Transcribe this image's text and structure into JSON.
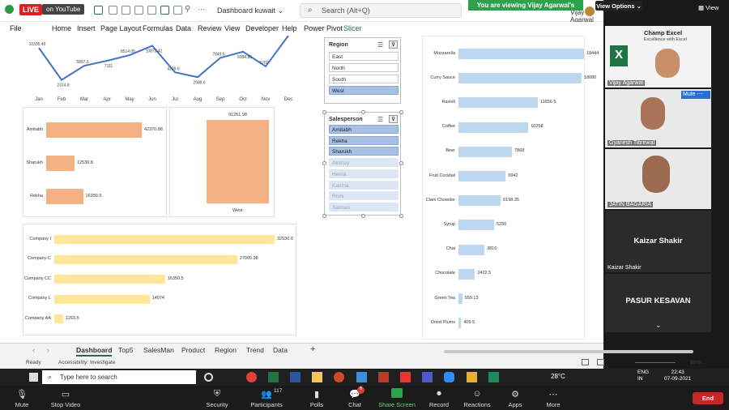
{
  "qat": {
    "live": "LIVE",
    "youtube": "on YouTube",
    "file_name": "Dashboard kuwait",
    "search_placeholder": "Search (Alt+Q)",
    "user": "Vijay Agarwal"
  },
  "zoom_banner": {
    "text": "You are viewing Vijay Agarwal's screen",
    "view_options": "View Options",
    "view": "View"
  },
  "menu": [
    "File",
    "Home",
    "Insert",
    "Page Layout",
    "Formulas",
    "Data",
    "Review",
    "View",
    "Developer",
    "Help",
    "Power Pivot",
    "Slicer"
  ],
  "line_chart": {
    "categories": [
      "Jan",
      "Feb",
      "Mar",
      "Apr",
      "May",
      "Jun",
      "Jul",
      "Aug",
      "Sep",
      "Oct",
      "Nov",
      "Dec"
    ],
    "values": [
      10335.45,
      2314.8,
      5857.5,
      7111,
      8514.05,
      10873.42,
      4209.6,
      2988.6,
      7849.6,
      9384.85,
      5702,
      15000
    ],
    "labels": [
      "10335.45",
      "2314.8",
      "5857.5",
      "7111",
      "8514.05",
      "10873.42",
      "4209.6",
      "2988.6",
      "7849.6",
      "9384.85",
      "5702",
      ""
    ],
    "ylim": [
      0,
      13000
    ]
  },
  "salesperson_chart": {
    "categories": [
      "Amitabh",
      "Sharukh",
      "Rekha"
    ],
    "values": [
      42370.88,
      12530.8,
      16350.5
    ],
    "labels": [
      "42370.88",
      "12530.8",
      "16350.5"
    ]
  },
  "region_chart": {
    "categories": [
      "West"
    ],
    "values": [
      91251.98
    ],
    "labels": [
      "91251.98"
    ]
  },
  "company_chart": {
    "categories": [
      "Company I",
      "Company C",
      "Company CC",
      "Company L",
      "Company AA"
    ],
    "values": [
      32530.6,
      27005.38,
      16350.5,
      14074,
      1293.5
    ],
    "labels": [
      "32530.6",
      "27005.38",
      "16350.5",
      "14074",
      "1293.5"
    ]
  },
  "product_chart": {
    "categories": [
      "Mozzarella",
      "Curry Sauce",
      "Ravioli",
      "Coffee",
      "Beer",
      "Fruit Cocktail",
      "Clam Chowder",
      "Syrup",
      "Chai",
      "Chocolate",
      "Green Tea",
      "Dried Plums"
    ],
    "values": [
      18444,
      18080,
      11656.5,
      10258,
      7868,
      6942,
      6198.35,
      5230,
      3816,
      2422.5,
      559.13,
      409.5
    ],
    "labels": [
      "18444",
      "18080",
      "11656.5",
      "10258",
      "7868",
      "6942",
      "6198.35",
      "5230",
      "3816",
      "2422.5",
      "559.13",
      "409.5"
    ]
  },
  "region_slicer": {
    "title": "Region",
    "items": [
      "East",
      "North",
      "South",
      "West"
    ],
    "selected": [
      false,
      false,
      false,
      true
    ]
  },
  "salesperson_slicer": {
    "title": "Salesperson",
    "items": [
      "Amitabh",
      "Rekha",
      "Sharukh",
      "Akshay",
      "Hema",
      "Katrina",
      "Rishi",
      "Salman"
    ],
    "selected": [
      true,
      true,
      true,
      false,
      false,
      false,
      false,
      false
    ]
  },
  "tabs": [
    "Dashboard",
    "Top5",
    "SalesMan",
    "Product",
    "Region",
    "Trend",
    "Data"
  ],
  "status": {
    "ready": "Ready",
    "accessibility": "Accessibility: Investigate",
    "zoom": "90%"
  },
  "participants": [
    {
      "name": "Vijay Agarwal",
      "logo": "Champ Excel",
      "tagline": "Excellence with Excel"
    },
    {
      "name": "Gyanesh Tibrewal",
      "badge": "Mute"
    },
    {
      "name": "JATIN BAGARIA"
    },
    {
      "name": "Kaizar Shakir",
      "big": "Kaizar Shakir"
    },
    {
      "big": "PASUR KESAVAN"
    }
  ],
  "taskbar": {
    "search": "Type here to search",
    "temp": "28°C",
    "lang": "ENG",
    "region": "IN",
    "time": "22:43",
    "date": "07-09-2021"
  },
  "zoom_controls": {
    "mute": "Mute",
    "video": "Stop Video",
    "security": "Security",
    "participants": "Participants",
    "participant_count": "117",
    "polls": "Polls",
    "chat": "Chat",
    "chat_badge": "6",
    "share": "Share Screen",
    "record": "Record",
    "reactions": "Reactions",
    "apps": "Apps",
    "more": "More",
    "end": "End"
  },
  "colors": {
    "line": "#4472c4",
    "salesperson_bar": "#f4b183",
    "company_bar": "#ffe699",
    "product_bar": "#bdd7ee",
    "excel_green": "#217346",
    "zoom_green": "#2ea24a",
    "end_red": "#c62828"
  }
}
